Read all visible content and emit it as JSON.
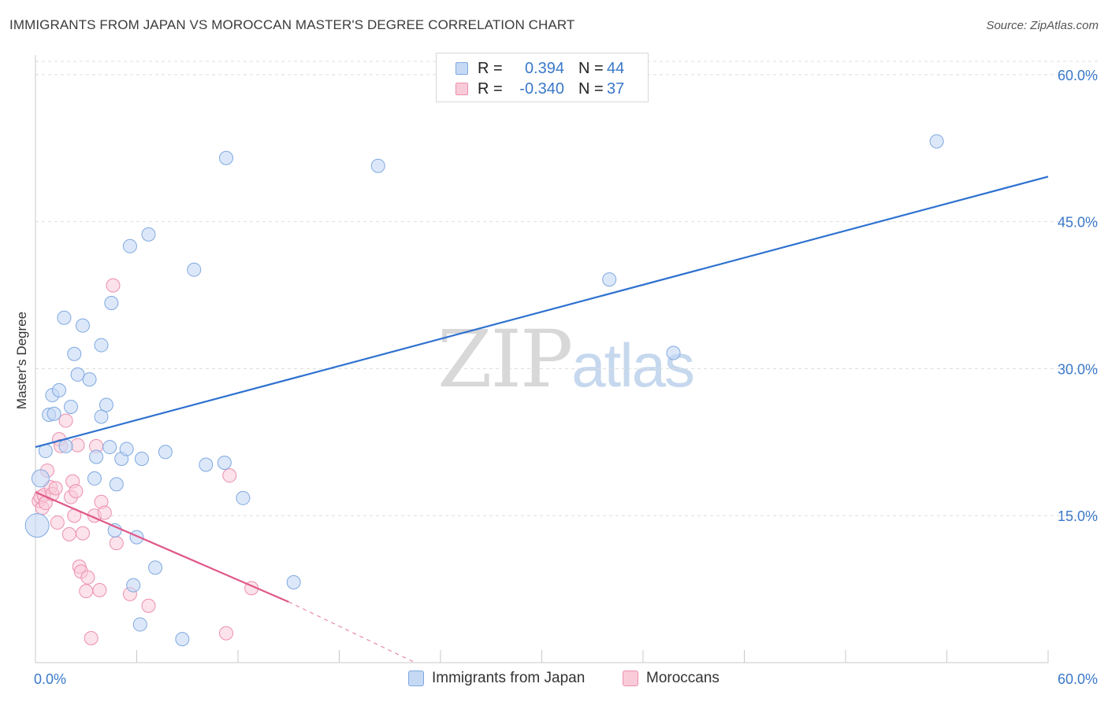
{
  "header": {
    "title": "IMMIGRANTS FROM JAPAN VS MOROCCAN MASTER'S DEGREE CORRELATION CHART",
    "source": "Source: ZipAtlas.com"
  },
  "watermark": {
    "zip": "ZIP",
    "atlas": "atlas"
  },
  "legend": {
    "rows": [
      {
        "r_label": "R =",
        "r_value": "0.394",
        "n_label": "N =",
        "n_value": "44"
      },
      {
        "r_label": "R =",
        "r_value": "-0.340",
        "n_label": "N =",
        "n_value": "37"
      }
    ]
  },
  "bottom_legend": {
    "japan": "Immigrants from Japan",
    "moroccans": "Moroccans"
  },
  "colors": {
    "japan_fill": "#c5d9f5",
    "japan_stroke": "#7fa8e0",
    "japan_line": "#2f72d0",
    "moroccan_fill": "#f9cbd9",
    "moroccan_stroke": "#ec8fae",
    "moroccan_line": "#e0588a",
    "grid": "#dedede",
    "tick_text": "#3a78c9"
  },
  "chart_data": {
    "type": "scatter",
    "title": "IMMIGRANTS FROM JAPAN VS MOROCCAN MASTER'S DEGREE CORRELATION CHART",
    "xlabel": "",
    "ylabel": "Master's Degree",
    "xlim": [
      0,
      60
    ],
    "ylim": [
      0,
      62
    ],
    "x_tick_labels": [
      "0.0%",
      "60.0%"
    ],
    "y_ticks": [
      15,
      30,
      45,
      60
    ],
    "y_tick_labels": [
      "15.0%",
      "30.0%",
      "45.0%",
      "60.0%"
    ],
    "grid": true,
    "series": [
      {
        "name": "Immigrants from Japan",
        "r": 0.394,
        "n": 44,
        "points": [
          [
            0.1,
            14.0
          ],
          [
            0.3,
            18.8
          ],
          [
            0.6,
            21.6
          ],
          [
            0.8,
            25.3
          ],
          [
            1.0,
            27.3
          ],
          [
            1.1,
            25.4
          ],
          [
            1.4,
            27.8
          ],
          [
            1.7,
            35.2
          ],
          [
            1.8,
            22.1
          ],
          [
            2.1,
            26.1
          ],
          [
            2.3,
            31.5
          ],
          [
            2.5,
            29.4
          ],
          [
            2.8,
            34.4
          ],
          [
            3.2,
            28.9
          ],
          [
            3.5,
            18.8
          ],
          [
            3.6,
            21.0
          ],
          [
            3.9,
            32.4
          ],
          [
            3.9,
            25.1
          ],
          [
            4.2,
            26.3
          ],
          [
            4.4,
            22.0
          ],
          [
            4.5,
            36.7
          ],
          [
            4.7,
            13.5
          ],
          [
            4.8,
            18.2
          ],
          [
            5.1,
            20.8
          ],
          [
            5.4,
            21.8
          ],
          [
            5.6,
            42.5
          ],
          [
            5.8,
            7.9
          ],
          [
            6.0,
            12.8
          ],
          [
            6.2,
            3.9
          ],
          [
            6.3,
            20.8
          ],
          [
            6.7,
            43.7
          ],
          [
            7.1,
            9.7
          ],
          [
            7.7,
            21.5
          ],
          [
            8.7,
            2.4
          ],
          [
            9.4,
            40.1
          ],
          [
            10.1,
            20.2
          ],
          [
            11.2,
            20.4
          ],
          [
            11.3,
            51.5
          ],
          [
            12.3,
            16.8
          ],
          [
            15.3,
            8.2
          ],
          [
            20.3,
            50.7
          ],
          [
            34.0,
            39.1
          ],
          [
            37.8,
            31.6
          ],
          [
            53.4,
            53.2
          ]
        ],
        "trend": {
          "x0": 0,
          "y0": 22.0,
          "x1": 60,
          "y1": 49.6
        }
      },
      {
        "name": "Moroccans",
        "r": -0.34,
        "n": 37,
        "points": [
          [
            0.2,
            16.5
          ],
          [
            0.3,
            16.9
          ],
          [
            0.4,
            15.8
          ],
          [
            0.5,
            17.1
          ],
          [
            0.6,
            16.3
          ],
          [
            0.7,
            19.6
          ],
          [
            0.9,
            17.9
          ],
          [
            1.0,
            17.2
          ],
          [
            1.2,
            17.8
          ],
          [
            1.3,
            14.3
          ],
          [
            1.4,
            22.8
          ],
          [
            1.5,
            22.1
          ],
          [
            1.8,
            24.7
          ],
          [
            2.0,
            13.1
          ],
          [
            2.1,
            16.9
          ],
          [
            2.2,
            18.5
          ],
          [
            2.3,
            15.0
          ],
          [
            2.5,
            22.2
          ],
          [
            2.6,
            9.8
          ],
          [
            2.7,
            9.3
          ],
          [
            2.8,
            13.2
          ],
          [
            3.0,
            7.3
          ],
          [
            3.1,
            8.7
          ],
          [
            3.3,
            2.5
          ],
          [
            3.5,
            15.0
          ],
          [
            3.6,
            22.1
          ],
          [
            3.8,
            7.4
          ],
          [
            3.9,
            16.4
          ],
          [
            4.1,
            15.3
          ],
          [
            4.6,
            38.5
          ],
          [
            4.8,
            12.2
          ],
          [
            5.6,
            7.0
          ],
          [
            6.7,
            5.8
          ],
          [
            11.3,
            3.0
          ],
          [
            11.5,
            19.1
          ],
          [
            12.8,
            7.6
          ],
          [
            2.4,
            17.5
          ]
        ],
        "trend": {
          "x0": 0,
          "y0": 17.4,
          "x1": 15.0,
          "y1": 6.2
        },
        "trend_extension": {
          "x0": 15.0,
          "y0": 6.2,
          "x1": 22.5,
          "y1": 0.0
        }
      }
    ]
  }
}
